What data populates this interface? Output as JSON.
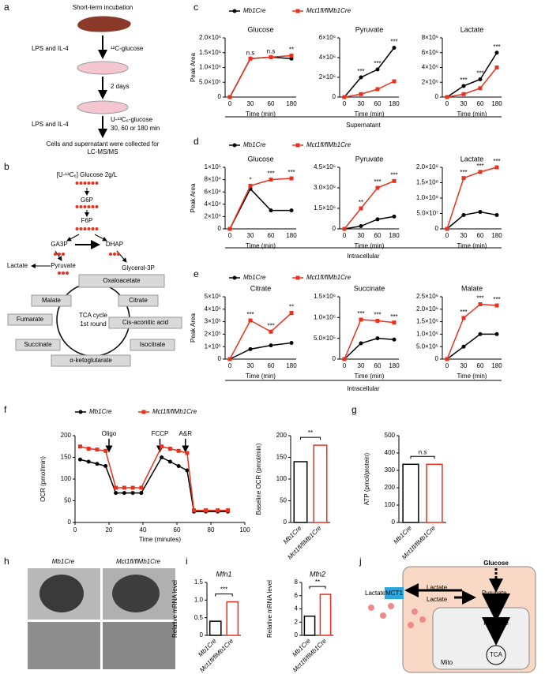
{
  "panel_labels": [
    "a",
    "b",
    "c",
    "d",
    "e",
    "f",
    "g",
    "h",
    "i",
    "j"
  ],
  "panel_a": [
    "Short-term incubation",
    "LPS and IL-4",
    "¹²C-glucose",
    "2 days",
    "LPS and IL-4",
    "U-¹³C₆-glucose",
    "30, 60 or 180 min",
    "Cells and supernatant were collected for",
    "LC-MS/MS"
  ],
  "panel_b": [
    "[U-¹³C₆] Glucose  2g/L",
    "G6P",
    "F6P",
    "GA3P",
    "DHAP",
    "Glycerol-3P",
    "Lactate",
    "Pyruvate",
    "Oxaloacetate",
    "Malate",
    "Citrate",
    "TCA cycle",
    "1st round",
    "Fumarate",
    "Cis-aconitic acid",
    "Succinate",
    "Isocitrate",
    "α-ketoglutarate"
  ],
  "sections": [
    "Supernatant",
    "Intracellular",
    "Intracellular"
  ],
  "panel_h": [
    "Mb1Cre",
    "Mct1fl/flMb1Cre"
  ],
  "panel_j": [
    "Glucose",
    "Lactate",
    "MCT1",
    "Lactate",
    "Lactate",
    "Pyruvate",
    "Pyruvate",
    "TCA",
    "Mito"
  ],
  "chart_data": [
    {
      "type": "line",
      "title": "Glucose",
      "categories": [
        "0",
        "30",
        "60",
        "180"
      ],
      "xlabel": "Time (min)",
      "ylabel": "Peak Area",
      "series": [
        {
          "name": "Mb1Cre",
          "color": "#000000",
          "values": [
            0,
            1300000,
            1350000,
            1300000
          ]
        },
        {
          "name": "Mct1fl/flMb1Cre",
          "color": "#e8321e",
          "values": [
            0,
            1300000,
            1350000,
            1400000
          ]
        }
      ],
      "ylim": [
        0,
        2000000
      ],
      "yticks": [
        0,
        {
          "value": 500000,
          "label": "5.0×10⁵"
        },
        {
          "value": 1000000,
          "label": "1.0×10⁶"
        },
        {
          "value": 1500000,
          "label": "1.5×10⁶"
        },
        {
          "value": 2000000,
          "label": "2.0×10⁶"
        }
      ],
      "significance": [
        null,
        "n.s",
        "n.s",
        "**"
      ]
    },
    {
      "type": "line",
      "title": "Pyruvate",
      "categories": [
        "0",
        "30",
        "60",
        "180"
      ],
      "xlabel": "Time (min)",
      "series": [
        {
          "color": "#000000",
          "values": [
            0,
            2000000,
            2800000,
            5000000
          ]
        },
        {
          "color": "#e8321e",
          "values": [
            0,
            300000,
            800000,
            1600000
          ]
        }
      ],
      "ylim": [
        0,
        6000000
      ],
      "yticks": [
        0,
        {
          "value": 2000000,
          "label": "2×10⁶"
        },
        {
          "value": 4000000,
          "label": "4×10⁶"
        },
        {
          "value": 6000000,
          "label": "6×10⁶"
        }
      ],
      "significance": [
        null,
        "***",
        "***",
        "***"
      ]
    },
    {
      "type": "line",
      "title": "Lactate",
      "categories": [
        "0",
        "30",
        "60",
        "180"
      ],
      "xlabel": "Time (min)",
      "series": [
        {
          "color": "#000000",
          "values": [
            0,
            1500000,
            2400000,
            6000000
          ]
        },
        {
          "color": "#e8321e",
          "values": [
            0,
            400000,
            1200000,
            4000000
          ]
        }
      ],
      "ylim": [
        0,
        8000000
      ],
      "yticks": [
        0,
        {
          "value": 2000000,
          "label": "2×10⁶"
        },
        {
          "value": 4000000,
          "label": "4×10⁶"
        },
        {
          "value": 6000000,
          "label": "6×10⁶"
        },
        {
          "value": 8000000,
          "label": "8×10⁶"
        }
      ],
      "significance": [
        null,
        "***",
        "***",
        "***"
      ]
    },
    {
      "type": "line",
      "title": "Glucose",
      "categories": [
        "0",
        "30",
        "60",
        "180"
      ],
      "xlabel": "Time (min)",
      "ylabel": "Peak Area",
      "series": [
        {
          "name": "Mb1Cre",
          "color": "#000000",
          "values": [
            0,
            65000,
            30000,
            30000
          ]
        },
        {
          "name": "Mct1fl/flMb1Cre",
          "color": "#e8321e",
          "values": [
            0,
            70000,
            80000,
            82000
          ]
        }
      ],
      "ylim": [
        0,
        100000
      ],
      "yticks": [
        0,
        {
          "value": 20000,
          "label": "2×10⁴"
        },
        {
          "value": 40000,
          "label": "4×10⁴"
        },
        {
          "value": 60000,
          "label": "6×10⁴"
        },
        {
          "value": 80000,
          "label": "8×10⁴"
        },
        {
          "value": 100000,
          "label": "1×10⁵"
        }
      ],
      "significance": [
        null,
        "*",
        "***",
        "***"
      ]
    },
    {
      "type": "line",
      "title": "Pyruvate",
      "categories": [
        "0",
        "30",
        "60",
        "180"
      ],
      "xlabel": "Time (min)",
      "series": [
        {
          "color": "#000000",
          "values": [
            0,
            200000,
            700000,
            900000
          ]
        },
        {
          "color": "#e8321e",
          "values": [
            0,
            1500000,
            3000000,
            3500000
          ]
        }
      ],
      "ylim": [
        0,
        4500000
      ],
      "yticks": [
        0,
        {
          "value": 1500000,
          "label": "1.5×10⁶"
        },
        {
          "value": 3000000,
          "label": "3.0×10⁶"
        },
        {
          "value": 4500000,
          "label": "4.5×10⁶"
        }
      ],
      "significance": [
        null,
        "**",
        "***",
        "***"
      ]
    },
    {
      "type": "line",
      "title": "Lactate",
      "categories": [
        "0",
        "30",
        "60",
        "180"
      ],
      "xlabel": "Time (min)",
      "series": [
        {
          "color": "#000000",
          "values": [
            0,
            45000000,
            55000000,
            45000000
          ]
        },
        {
          "color": "#e8321e",
          "values": [
            0,
            165000000,
            185000000,
            200000000
          ]
        }
      ],
      "ylim": [
        0,
        200000000
      ],
      "yticks": [
        0,
        {
          "value": 50000000,
          "label": "5.0×10⁷"
        },
        {
          "value": 100000000,
          "label": "1.0×10⁸"
        },
        {
          "value": 150000000,
          "label": "1.5×10⁸"
        },
        {
          "value": 200000000,
          "label": "2.0×10⁸"
        }
      ],
      "significance": [
        null,
        "***",
        "***",
        "***"
      ]
    },
    {
      "type": "line",
      "title": "Citrate",
      "categories": [
        "0",
        "30",
        "60",
        "180"
      ],
      "xlabel": "Time (min)",
      "ylabel": "Peak Area",
      "series": [
        {
          "name": "Mb1Cre",
          "color": "#000000",
          "values": [
            0,
            80000,
            110000,
            130000
          ]
        },
        {
          "name": "Mct1fl/flMb1Cre",
          "color": "#e8321e",
          "values": [
            0,
            310000,
            220000,
            370000
          ]
        }
      ],
      "ylim": [
        0,
        500000
      ],
      "yticks": [
        0,
        {
          "value": 100000,
          "label": "1×10⁵"
        },
        {
          "value": 200000,
          "label": "2×10⁵"
        },
        {
          "value": 300000,
          "label": "3×10⁵"
        },
        {
          "value": 400000,
          "label": "4×10⁵"
        },
        {
          "value": 500000,
          "label": "5×10⁵"
        }
      ],
      "significance": [
        null,
        "***",
        "***",
        "**"
      ]
    },
    {
      "type": "line",
      "title": "Succinate",
      "categories": [
        "0",
        "30",
        "60",
        "180"
      ],
      "xlabel": "Time (min)",
      "series": [
        {
          "color": "#000000",
          "values": [
            0,
            380000,
            500000,
            470000
          ]
        },
        {
          "color": "#e8321e",
          "values": [
            0,
            950000,
            920000,
            880000
          ]
        }
      ],
      "ylim": [
        0,
        1500000
      ],
      "yticks": [
        0,
        {
          "value": 500000,
          "label": "5.0×10⁵"
        },
        {
          "value": 1000000,
          "label": "1.0×10⁶"
        },
        {
          "value": 1500000,
          "label": "1.5×10⁶"
        }
      ],
      "significance": [
        null,
        "***",
        "***",
        "***"
      ]
    },
    {
      "type": "line",
      "title": "Malate",
      "categories": [
        "0",
        "30",
        "60",
        "180"
      ],
      "xlabel": "Time (min)",
      "series": [
        {
          "color": "#000000",
          "values": [
            0,
            500000,
            1000000,
            1000000
          ]
        },
        {
          "color": "#e8321e",
          "values": [
            0,
            1650000,
            2200000,
            2150000
          ]
        }
      ],
      "ylim": [
        0,
        2500000
      ],
      "yticks": [
        0,
        {
          "value": 500000,
          "label": "5.0×10⁵"
        },
        {
          "value": 1000000,
          "label": "1.0×10⁶"
        },
        {
          "value": 1500000,
          "label": "1.5×10⁶"
        },
        {
          "value": 2000000,
          "label": "2.0×10⁶"
        },
        {
          "value": 2500000,
          "label": "2.5×10⁶"
        }
      ],
      "significance": [
        null,
        "***",
        "***",
        "***"
      ]
    },
    {
      "type": "line",
      "xlabel": "Time (minutes)",
      "ylabel": "OCR (pmol/min)",
      "x": [
        3,
        8,
        13,
        18,
        24,
        29,
        34,
        39,
        51,
        56,
        61,
        66,
        70,
        77,
        84,
        90
      ],
      "series": [
        {
          "name": "Mb1Cre",
          "color": "#000000",
          "values": [
            145,
            140,
            135,
            130,
            68,
            68,
            68,
            68,
            150,
            140,
            130,
            120,
            25,
            25,
            25,
            25
          ]
        },
        {
          "name": "Mct1fl/flMb1Cre",
          "color": "#e8321e",
          "values": [
            175,
            170,
            168,
            165,
            80,
            80,
            80,
            80,
            175,
            170,
            165,
            160,
            28,
            28,
            28,
            28
          ]
        }
      ],
      "xlim": [
        0,
        100
      ],
      "xticks": [
        0,
        20,
        40,
        60,
        80,
        100
      ],
      "ylim": [
        0,
        200
      ],
      "yticks": [
        0,
        50,
        100,
        150,
        200
      ],
      "injections": [
        {
          "label": "Oligo",
          "x": 20
        },
        {
          "label": "FCCP",
          "x": 50
        },
        {
          "label": "A&R",
          "x": 65
        }
      ]
    },
    {
      "type": "bar",
      "ylabel": "Baseline OCR (pmol/min)",
      "categories": [
        "Mb1Cre",
        "Mct1fl/flMb1Cre"
      ],
      "values": [
        140,
        178
      ],
      "colors": [
        "#000000",
        "#e8321e"
      ],
      "ylim": [
        0,
        200
      ],
      "yticks": [
        0,
        50,
        100,
        150,
        200
      ],
      "significance": "**"
    },
    {
      "type": "bar",
      "ylabel": "ATP (pmol/protein)",
      "categories": [
        "Mb1Cre",
        "Mct1fl/flMb1Cre"
      ],
      "values": [
        335,
        335
      ],
      "colors": [
        "#000000",
        "#e8321e"
      ],
      "ylim": [
        0,
        500
      ],
      "yticks": [
        0,
        100,
        200,
        300,
        400,
        500
      ],
      "significance": "n.s"
    },
    {
      "type": "bar",
      "title": "Mfn1",
      "ylabel": "Relative mRNA level",
      "categories": [
        "Mb1Cre",
        "Mct1fl/flMb1Cre"
      ],
      "values": [
        0.4,
        0.95
      ],
      "colors": [
        "#000000",
        "#e8321e"
      ],
      "ylim": [
        0,
        1.5
      ],
      "yticks": [
        0,
        {
          "value": 0.5,
          "label": "0.5"
        },
        {
          "value": 1,
          "label": "1.0"
        },
        {
          "value": 1.5,
          "label": "1.5"
        }
      ],
      "significance": "***"
    },
    {
      "type": "bar",
      "title": "Mfn2",
      "ylabel": "Relative mRNA level",
      "categories": [
        "Mb1Cre",
        "Mct1fl/flMb1Cre"
      ],
      "values": [
        2.9,
        6.2
      ],
      "colors": [
        "#000000",
        "#e8321e"
      ],
      "ylim": [
        0,
        8
      ],
      "yticks": [
        0,
        2,
        4,
        6,
        8
      ],
      "significance": "**"
    }
  ]
}
